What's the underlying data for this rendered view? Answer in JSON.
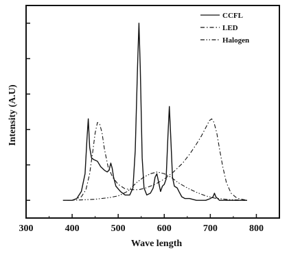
{
  "chart_data": {
    "type": "line",
    "xlabel": "Wave length",
    "ylabel": "Intensity (A.U)",
    "xlim": [
      300,
      850
    ],
    "ylim": [
      -0.1,
      1.1
    ],
    "x_ticks": [
      300,
      400,
      500,
      600,
      700,
      800
    ],
    "y_ticks": [
      0,
      0.2,
      0.4,
      0.6,
      0.8,
      1.0
    ],
    "y_tick_labels_visible": false,
    "legend_position": "top-right",
    "series": [
      {
        "name": "CCFL",
        "style": "solid",
        "points": [
          [
            380,
            0.0
          ],
          [
            400,
            0.0
          ],
          [
            410,
            0.01
          ],
          [
            420,
            0.05
          ],
          [
            428,
            0.15
          ],
          [
            432,
            0.34
          ],
          [
            435,
            0.46
          ],
          [
            438,
            0.3
          ],
          [
            442,
            0.24
          ],
          [
            447,
            0.23
          ],
          [
            455,
            0.22
          ],
          [
            462,
            0.19
          ],
          [
            470,
            0.17
          ],
          [
            476,
            0.16
          ],
          [
            480,
            0.17
          ],
          [
            484,
            0.21
          ],
          [
            487,
            0.18
          ],
          [
            490,
            0.13
          ],
          [
            495,
            0.08
          ],
          [
            505,
            0.05
          ],
          [
            515,
            0.03
          ],
          [
            525,
            0.03
          ],
          [
            532,
            0.07
          ],
          [
            537,
            0.28
          ],
          [
            542,
            0.76
          ],
          [
            545,
            1.0
          ],
          [
            548,
            0.74
          ],
          [
            552,
            0.24
          ],
          [
            556,
            0.07
          ],
          [
            562,
            0.03
          ],
          [
            570,
            0.04
          ],
          [
            576,
            0.07
          ],
          [
            580,
            0.13
          ],
          [
            584,
            0.15
          ],
          [
            588,
            0.1
          ],
          [
            592,
            0.05
          ],
          [
            596,
            0.08
          ],
          [
            600,
            0.09
          ],
          [
            604,
            0.12
          ],
          [
            608,
            0.36
          ],
          [
            611,
            0.53
          ],
          [
            614,
            0.36
          ],
          [
            618,
            0.13
          ],
          [
            622,
            0.08
          ],
          [
            628,
            0.07
          ],
          [
            632,
            0.05
          ],
          [
            638,
            0.02
          ],
          [
            645,
            0.01
          ],
          [
            655,
            0.01
          ],
          [
            670,
            0.0
          ],
          [
            690,
            0.0
          ],
          [
            700,
            0.01
          ],
          [
            706,
            0.02
          ],
          [
            709,
            0.04
          ],
          [
            712,
            0.02
          ],
          [
            720,
            0.0
          ],
          [
            750,
            0.0
          ],
          [
            780,
            0.0
          ]
        ]
      },
      {
        "name": "LED",
        "style": "dash-dot",
        "points": [
          [
            400,
            0.0
          ],
          [
            420,
            0.02
          ],
          [
            430,
            0.06
          ],
          [
            438,
            0.15
          ],
          [
            445,
            0.28
          ],
          [
            450,
            0.38
          ],
          [
            455,
            0.44
          ],
          [
            460,
            0.43
          ],
          [
            465,
            0.38
          ],
          [
            470,
            0.29
          ],
          [
            478,
            0.19
          ],
          [
            488,
            0.13
          ],
          [
            500,
            0.09
          ],
          [
            515,
            0.065
          ],
          [
            530,
            0.06
          ],
          [
            545,
            0.06
          ],
          [
            560,
            0.07
          ],
          [
            580,
            0.09
          ],
          [
            600,
            0.12
          ],
          [
            620,
            0.16
          ],
          [
            640,
            0.21
          ],
          [
            655,
            0.26
          ],
          [
            668,
            0.31
          ],
          [
            680,
            0.36
          ],
          [
            690,
            0.41
          ],
          [
            698,
            0.45
          ],
          [
            703,
            0.46
          ],
          [
            708,
            0.44
          ],
          [
            714,
            0.38
          ],
          [
            720,
            0.29
          ],
          [
            727,
            0.19
          ],
          [
            735,
            0.1
          ],
          [
            745,
            0.04
          ],
          [
            758,
            0.012
          ],
          [
            780,
            0.0
          ]
        ]
      },
      {
        "name": "Halogen",
        "style": "dash-dot-dot",
        "points": [
          [
            390,
            0.0
          ],
          [
            420,
            0.002
          ],
          [
            450,
            0.006
          ],
          [
            480,
            0.015
          ],
          [
            500,
            0.025
          ],
          [
            520,
            0.05
          ],
          [
            540,
            0.1
          ],
          [
            555,
            0.13
          ],
          [
            570,
            0.15
          ],
          [
            585,
            0.16
          ],
          [
            600,
            0.15
          ],
          [
            615,
            0.13
          ],
          [
            630,
            0.1
          ],
          [
            650,
            0.07
          ],
          [
            670,
            0.045
          ],
          [
            690,
            0.025
          ],
          [
            710,
            0.012
          ],
          [
            740,
            0.004
          ],
          [
            780,
            0.0
          ]
        ]
      }
    ]
  }
}
